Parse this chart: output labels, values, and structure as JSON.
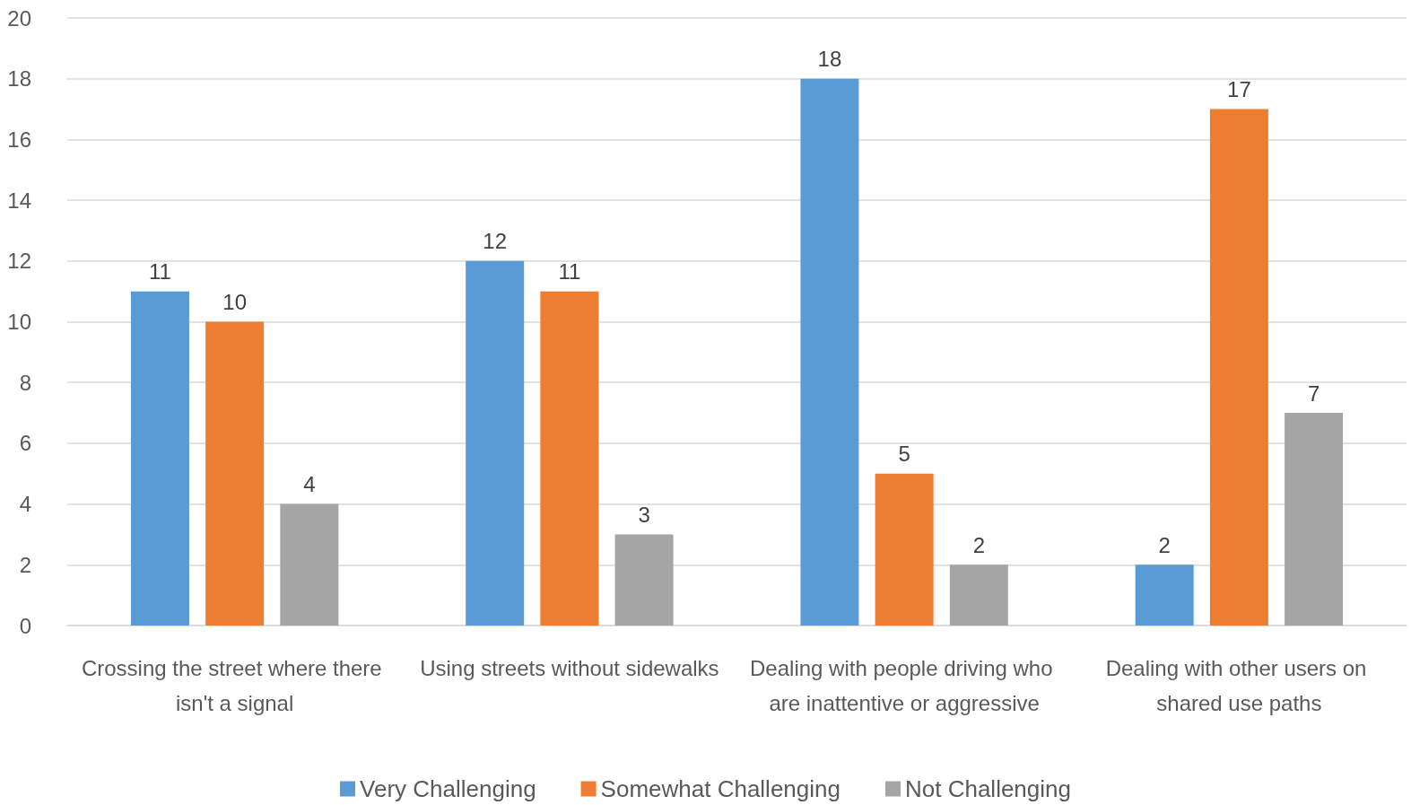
{
  "chart_data": {
    "type": "bar",
    "categories": [
      "Crossing the street where there isn't a signal",
      "Using streets without sidewalks",
      "Dealing with people driving who are inattentive or aggressive",
      "Dealing with other users on shared use paths"
    ],
    "series": [
      {
        "name": "Very Challenging",
        "color": "#5b9bd5",
        "values": [
          11,
          12,
          18,
          2
        ]
      },
      {
        "name": "Somewhat Challenging",
        "color": "#ed7d31",
        "values": [
          10,
          11,
          5,
          17
        ]
      },
      {
        "name": "Not Challenging",
        "color": "#a5a5a5",
        "values": [
          4,
          3,
          2,
          7
        ]
      }
    ],
    "ylim": [
      0,
      20
    ],
    "yticks": [
      0,
      2,
      4,
      6,
      8,
      10,
      12,
      14,
      16,
      18,
      20
    ],
    "grid": "y",
    "legend": "bottom",
    "data_labels": true
  }
}
